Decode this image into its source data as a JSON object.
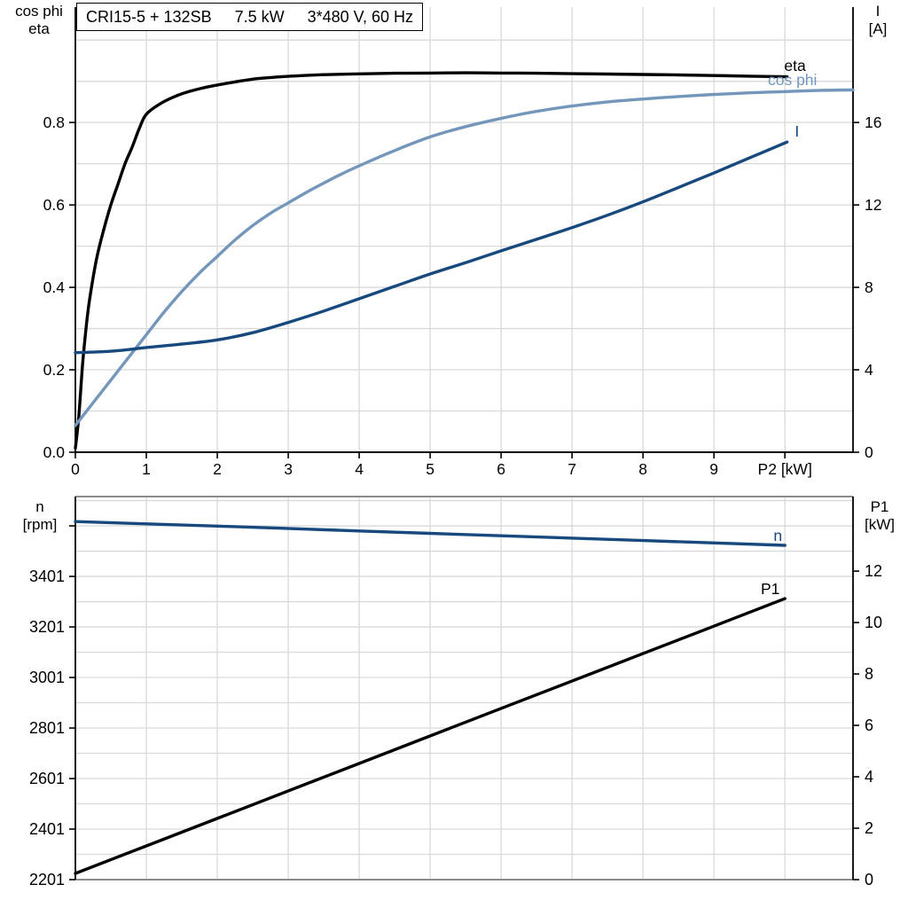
{
  "title": {
    "model": "CRI15-5 + 132SB",
    "power": "7.5 kW",
    "supply": "3*480 V, 60 Hz"
  },
  "labels": {
    "top_left_line1": "cos phi",
    "top_left_line2": "eta",
    "top_right_line1": "I",
    "top_right_line2": "[A]",
    "bottom_left_line1": "n",
    "bottom_left_line2": "[rpm]",
    "bottom_right_line1": "P1",
    "bottom_right_line2": "[kW]"
  },
  "colors": {
    "eta": "#000000",
    "cos_phi": "#7396ba",
    "current": "#17497e",
    "speed": "#17497e",
    "p1": "#000000",
    "grid": "#d9d9d9",
    "axis": "#000000",
    "frame_gray": "#8c8c8c",
    "background": "#ffffff"
  },
  "chart_data": [
    {
      "id": "top",
      "type": "line",
      "x_axis": {
        "label": "P2 [kW]",
        "xlim": [
          0,
          10.96
        ],
        "ticks": [
          {
            "v": 0,
            "label": "0"
          },
          {
            "v": 1,
            "label": "1"
          },
          {
            "v": 2,
            "label": "2"
          },
          {
            "v": 3,
            "label": "3"
          },
          {
            "v": 4,
            "label": "4"
          },
          {
            "v": 5,
            "label": "5"
          },
          {
            "v": 6,
            "label": "6"
          },
          {
            "v": 7,
            "label": "7"
          },
          {
            "v": 8,
            "label": "8"
          },
          {
            "v": 9,
            "label": "9"
          },
          {
            "v": 10,
            "label": "P2 [kW]"
          }
        ],
        "grid_values": [
          1,
          2,
          3,
          4,
          5,
          6,
          7,
          8,
          9,
          10
        ]
      },
      "left_axis": {
        "label": "cos phi / eta",
        "ylim": [
          0,
          1.08
        ],
        "ticks": [
          {
            "v": 0.0,
            "label": "0.0"
          },
          {
            "v": 0.2,
            "label": "0.2"
          },
          {
            "v": 0.4,
            "label": "0.4"
          },
          {
            "v": 0.6,
            "label": "0.6"
          },
          {
            "v": 0.8,
            "label": "0.8"
          }
        ],
        "grid_values": [
          0.1,
          0.2,
          0.3,
          0.4,
          0.5,
          0.6,
          0.7,
          0.8,
          0.9,
          1.0
        ]
      },
      "right_axis": {
        "label": "I [A]",
        "ylim": [
          0,
          21.6
        ],
        "ticks": [
          {
            "v": 0,
            "label": "0"
          },
          {
            "v": 4,
            "label": "4"
          },
          {
            "v": 8,
            "label": "8"
          },
          {
            "v": 12,
            "label": "12"
          },
          {
            "v": 16,
            "label": "16"
          }
        ]
      },
      "series": [
        {
          "name": "eta",
          "label": "eta",
          "axis": "left",
          "color_key": "eta",
          "label_pos": [
            9.99,
            0.925
          ],
          "points": [
            [
              0,
              0.01
            ],
            [
              0.05,
              0.09
            ],
            [
              0.1,
              0.21
            ],
            [
              0.15,
              0.3
            ],
            [
              0.2,
              0.37
            ],
            [
              0.3,
              0.47
            ],
            [
              0.4,
              0.54
            ],
            [
              0.5,
              0.6
            ],
            [
              0.6,
              0.65
            ],
            [
              0.7,
              0.7
            ],
            [
              0.8,
              0.74
            ],
            [
              0.9,
              0.785
            ],
            [
              1.0,
              0.82
            ],
            [
              1.2,
              0.846
            ],
            [
              1.4,
              0.863
            ],
            [
              1.6,
              0.875
            ],
            [
              1.8,
              0.884
            ],
            [
              2.0,
              0.891
            ],
            [
              2.5,
              0.905
            ],
            [
              3.0,
              0.912
            ],
            [
              3.5,
              0.916
            ],
            [
              4.0,
              0.918
            ],
            [
              4.5,
              0.9195
            ],
            [
              5.0,
              0.92
            ],
            [
              5.5,
              0.9205
            ],
            [
              6.0,
              0.92
            ],
            [
              6.5,
              0.9195
            ],
            [
              7.0,
              0.9185
            ],
            [
              7.5,
              0.9175
            ],
            [
              8.0,
              0.9165
            ],
            [
              8.5,
              0.9155
            ],
            [
              9.0,
              0.914
            ],
            [
              9.5,
              0.9125
            ],
            [
              10.03,
              0.911
            ]
          ]
        },
        {
          "name": "cos phi",
          "label": "cos phi",
          "axis": "left",
          "color_key": "cos_phi",
          "label_pos": [
            9.76,
            0.891
          ],
          "points": [
            [
              0,
              0.065
            ],
            [
              0.25,
              0.12
            ],
            [
              0.5,
              0.175
            ],
            [
              0.75,
              0.23
            ],
            [
              1.0,
              0.285
            ],
            [
              1.25,
              0.34
            ],
            [
              1.5,
              0.39
            ],
            [
              1.75,
              0.435
            ],
            [
              2.0,
              0.475
            ],
            [
              2.25,
              0.515
            ],
            [
              2.5,
              0.55
            ],
            [
              2.75,
              0.58
            ],
            [
              3.0,
              0.605
            ],
            [
              3.25,
              0.63
            ],
            [
              3.5,
              0.653
            ],
            [
              3.75,
              0.675
            ],
            [
              4.0,
              0.695
            ],
            [
              4.5,
              0.732
            ],
            [
              5.0,
              0.765
            ],
            [
              5.5,
              0.79
            ],
            [
              6.0,
              0.81
            ],
            [
              6.5,
              0.827
            ],
            [
              7.0,
              0.84
            ],
            [
              7.5,
              0.85
            ],
            [
              8.0,
              0.857
            ],
            [
              8.5,
              0.863
            ],
            [
              9.0,
              0.868
            ],
            [
              9.5,
              0.872
            ],
            [
              10.0,
              0.875
            ],
            [
              10.5,
              0.878
            ],
            [
              10.96,
              0.879
            ]
          ]
        },
        {
          "name": "I",
          "label": "I",
          "axis": "right",
          "color_key": "current",
          "label_pos": [
            10.14,
            15.32
          ],
          "points": [
            [
              0,
              4.83
            ],
            [
              0.5,
              4.9
            ],
            [
              1.0,
              5.08
            ],
            [
              1.5,
              5.25
            ],
            [
              2.0,
              5.45
            ],
            [
              2.5,
              5.8
            ],
            [
              3.0,
              6.3
            ],
            [
              3.5,
              6.85
            ],
            [
              4.0,
              7.45
            ],
            [
              4.5,
              8.05
            ],
            [
              5.0,
              8.65
            ],
            [
              5.5,
              9.2
            ],
            [
              6.0,
              9.77
            ],
            [
              6.5,
              10.33
            ],
            [
              7.0,
              10.9
            ],
            [
              7.5,
              11.5
            ],
            [
              8.0,
              12.15
            ],
            [
              8.5,
              12.85
            ],
            [
              9.0,
              13.55
            ],
            [
              9.5,
              14.28
            ],
            [
              10.03,
              15.05
            ]
          ]
        }
      ]
    },
    {
      "id": "bottom",
      "type": "line",
      "x_axis": {
        "label": "",
        "xlim": [
          0,
          10.96
        ],
        "ticks": [],
        "grid_values": [
          1,
          2,
          3,
          4,
          5,
          6,
          7,
          8,
          9,
          10
        ]
      },
      "left_axis": {
        "label": "n [rpm]",
        "ylim": [
          2201,
          3717
        ],
        "ticks": [
          {
            "v": 2201,
            "label": "2201"
          },
          {
            "v": 2401,
            "label": "2401"
          },
          {
            "v": 2601,
            "label": "2601"
          },
          {
            "v": 2801,
            "label": "2801"
          },
          {
            "v": 3001,
            "label": "3001"
          },
          {
            "v": 3201,
            "label": "3201"
          },
          {
            "v": 3401,
            "label": "3401"
          },
          {
            "v": 3601,
            "label": ""
          }
        ],
        "grid_values": [
          2301,
          2401,
          2501,
          2601,
          2701,
          2801,
          2901,
          3001,
          3101,
          3201,
          3301,
          3401,
          3501,
          3601,
          3701
        ]
      },
      "right_axis": {
        "label": "P1 [kW]",
        "ylim": [
          0,
          14.9
        ],
        "ticks": [
          {
            "v": 0,
            "label": "0"
          },
          {
            "v": 2,
            "label": "2"
          },
          {
            "v": 4,
            "label": "4"
          },
          {
            "v": 6,
            "label": "6"
          },
          {
            "v": 8,
            "label": "8"
          },
          {
            "v": 10,
            "label": "10"
          },
          {
            "v": 12,
            "label": "12"
          }
        ]
      },
      "series": [
        {
          "name": "n",
          "label": "n",
          "axis": "left",
          "color_key": "speed",
          "label_pos": [
            9.84,
            3542
          ],
          "points": [
            [
              0,
              3618
            ],
            [
              2,
              3600
            ],
            [
              4,
              3581
            ],
            [
              6,
              3562
            ],
            [
              8,
              3543
            ],
            [
              10,
              3524
            ]
          ]
        },
        {
          "name": "P1",
          "label": "P1",
          "axis": "right",
          "color_key": "p1",
          "label_pos": [
            9.66,
            11.1
          ],
          "points": [
            [
              0,
              0.24
            ],
            [
              2,
              2.38
            ],
            [
              4,
              4.52
            ],
            [
              6,
              6.66
            ],
            [
              8,
              8.79
            ],
            [
              10,
              10.93
            ]
          ]
        }
      ]
    }
  ]
}
